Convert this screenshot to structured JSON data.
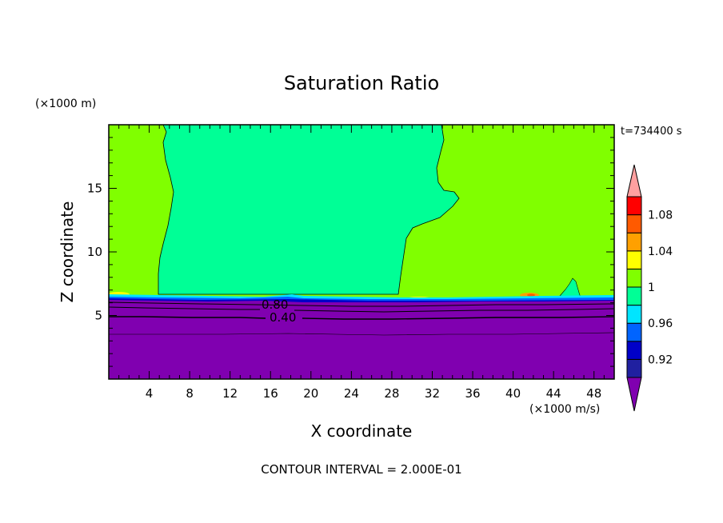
{
  "chart_data": {
    "type": "heatmap",
    "title": "Saturation Ratio",
    "xlabel": "X coordinate",
    "ylabel": "Z coordinate",
    "x_unit": "(×1000 m/s)",
    "y_unit": "(×1000 m)",
    "time_label": "t=734400 s",
    "footer": "CONTOUR INTERVAL = 2.000E-01",
    "xlim": [
      0,
      50
    ],
    "ylim": [
      0,
      20
    ],
    "x_ticks": [
      "4",
      "8",
      "12",
      "16",
      "20",
      "24",
      "28",
      "32",
      "36",
      "40",
      "44",
      "48"
    ],
    "y_ticks": [
      "5",
      "10",
      "15"
    ],
    "grid": false,
    "contour_labels": [
      {
        "text": "0.80",
        "x": 16.3,
        "z": 5.9
      },
      {
        "text": "0.40",
        "x": 17.0,
        "z": 4.8
      }
    ],
    "colorbar": {
      "tick_labels": [
        "0.92",
        "0.96",
        "1",
        "1.04",
        "1.08"
      ],
      "levels": [
        0.92,
        0.94,
        0.96,
        0.98,
        1.0,
        1.02,
        1.04,
        1.06,
        1.08,
        1.1
      ],
      "colors": [
        "#8000b0",
        "#2020a0",
        "#0000c8",
        "#0064ff",
        "#00e5ff",
        "#00ff96",
        "#80ff00",
        "#ffff00",
        "#ffa000",
        "#ff5a00",
        "#ff0000",
        "#ffa0a0"
      ]
    },
    "regions": [
      {
        "name": "saturation-ratio-below-0.92 (lower layer)",
        "color": "#8000b0",
        "z_top_approx": 6.2
      },
      {
        "name": "saturation-ratio-0.98-1.00",
        "color": "#00ff96"
      },
      {
        "name": "saturation-ratio-1.00-1.02",
        "color": "#80ff00"
      }
    ]
  }
}
